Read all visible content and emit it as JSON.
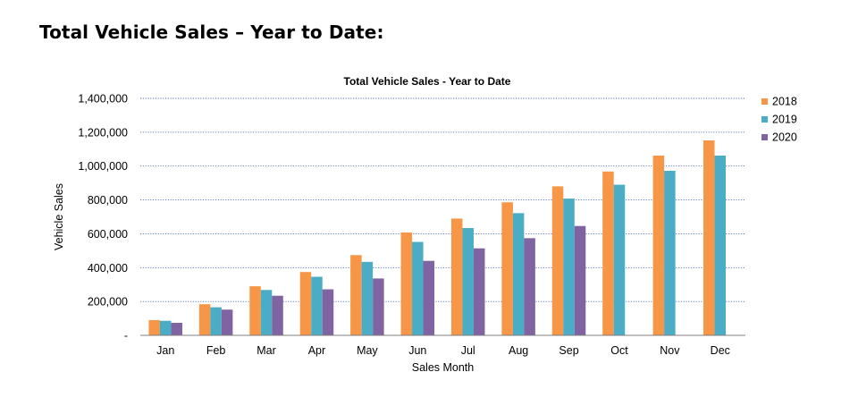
{
  "page": {
    "heading": "Total Vehicle Sales – Year to Date:"
  },
  "chart_data": {
    "type": "bar",
    "title": "Total Vehicle Sales - Year to Date",
    "xlabel": "Sales Month",
    "ylabel": "Vehicle Sales",
    "ylim": [
      0,
      1400000
    ],
    "yticks": [
      0,
      200000,
      400000,
      600000,
      800000,
      1000000,
      1200000,
      1400000
    ],
    "ytick_labels": [
      "-",
      "200,000",
      "400,000",
      "600,000",
      "800,000",
      "1,000,000",
      "1,200,000",
      "1,400,000"
    ],
    "grid": true,
    "legend_position": "right",
    "categories": [
      "Jan",
      "Feb",
      "Mar",
      "Apr",
      "May",
      "Jun",
      "Jul",
      "Aug",
      "Sep",
      "Oct",
      "Nov",
      "Dec"
    ],
    "series": [
      {
        "name": "2018",
        "color": "#F79646",
        "values": [
          90000,
          184000,
          290000,
          374000,
          474000,
          608000,
          690000,
          786000,
          880000,
          968000,
          1062000,
          1152000
        ]
      },
      {
        "name": "2019",
        "color": "#4BACC6",
        "values": [
          86000,
          166000,
          268000,
          346000,
          434000,
          552000,
          634000,
          722000,
          808000,
          890000,
          972000,
          1062000
        ]
      },
      {
        "name": "2020",
        "color": "#8064A2",
        "values": [
          74000,
          152000,
          234000,
          272000,
          336000,
          440000,
          514000,
          574000,
          646000,
          null,
          null,
          null
        ]
      }
    ]
  }
}
